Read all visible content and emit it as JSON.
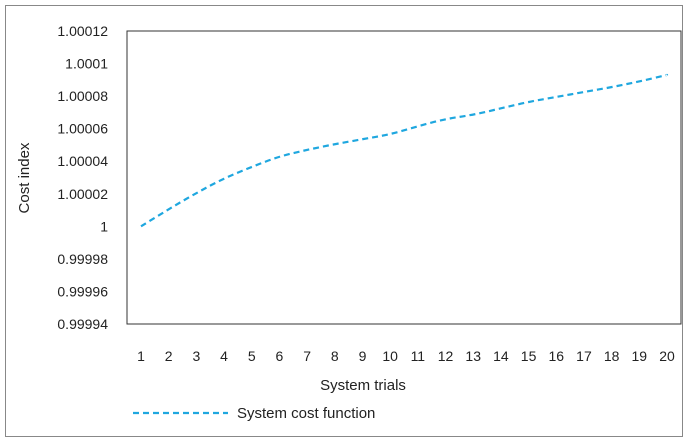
{
  "chart_data": {
    "type": "line",
    "xlabel": "System trials",
    "ylabel": "Cost index",
    "categories": [
      "1",
      "2",
      "3",
      "4",
      "5",
      "6",
      "7",
      "8",
      "9",
      "10",
      "11",
      "12",
      "13",
      "14",
      "15",
      "16",
      "17",
      "18",
      "19",
      "20"
    ],
    "ylim": [
      0.99994,
      1.00012
    ],
    "y_ticks": [
      "1.00012",
      "1.0001",
      "1.00008",
      "1.00006",
      "1.00004",
      "1.00002",
      "1",
      "0.99998",
      "0.99996",
      "0.99994"
    ],
    "y_tick_values": [
      1.00012,
      1.0001,
      1.00008,
      1.00006,
      1.00004,
      1.00002,
      1.0,
      0.99998,
      0.99996,
      0.99994
    ],
    "grid": false,
    "legend_position": "bottom",
    "series": [
      {
        "name": "System cost function",
        "color": "#1fa7df",
        "dash": "dashed",
        "values": [
          1.0,
          1.0000105,
          1.0000205,
          1.0000295,
          1.0000365,
          1.000043,
          1.000047,
          1.0000505,
          1.0000535,
          1.0000565,
          1.0000615,
          1.000066,
          1.0000685,
          1.0000725,
          1.0000765,
          1.0000795,
          1.0000825,
          1.0000855,
          1.000089,
          1.000093
        ]
      }
    ]
  }
}
